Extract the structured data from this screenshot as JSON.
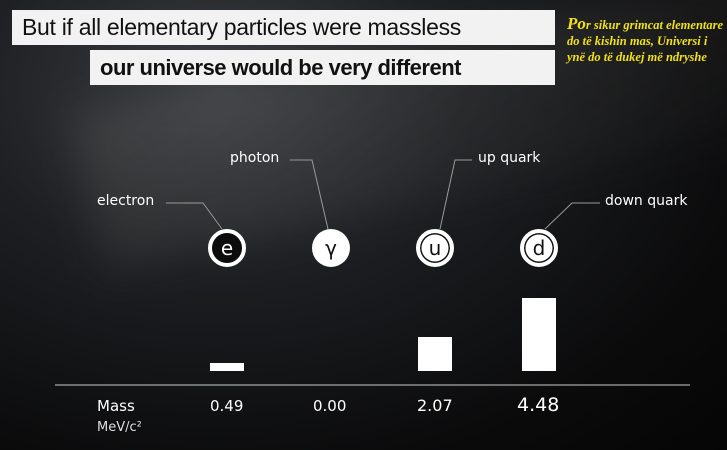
{
  "titles": {
    "line1": "But if all elementary particles were massless",
    "line2": "our universe would be very different"
  },
  "subtitle": {
    "first": "Po",
    "rest": "r sikur grimcat elementare do të kishin mas, Universi i ynë do të dukej më ndryshe"
  },
  "particles": [
    {
      "name": "electron",
      "symbol": "e",
      "mass": "0.49",
      "mass_value": 0.49
    },
    {
      "name": "photon",
      "symbol": "γ",
      "mass": "0.00",
      "mass_value": 0
    },
    {
      "name": "up quark",
      "symbol": "u",
      "mass": "2.07",
      "mass_value": 2.07
    },
    {
      "name": "down quark",
      "symbol": "d",
      "mass": "4.48",
      "mass_value": 4.48
    }
  ],
  "axis": {
    "label": "Mass",
    "unit": "MeV/c²"
  }
}
